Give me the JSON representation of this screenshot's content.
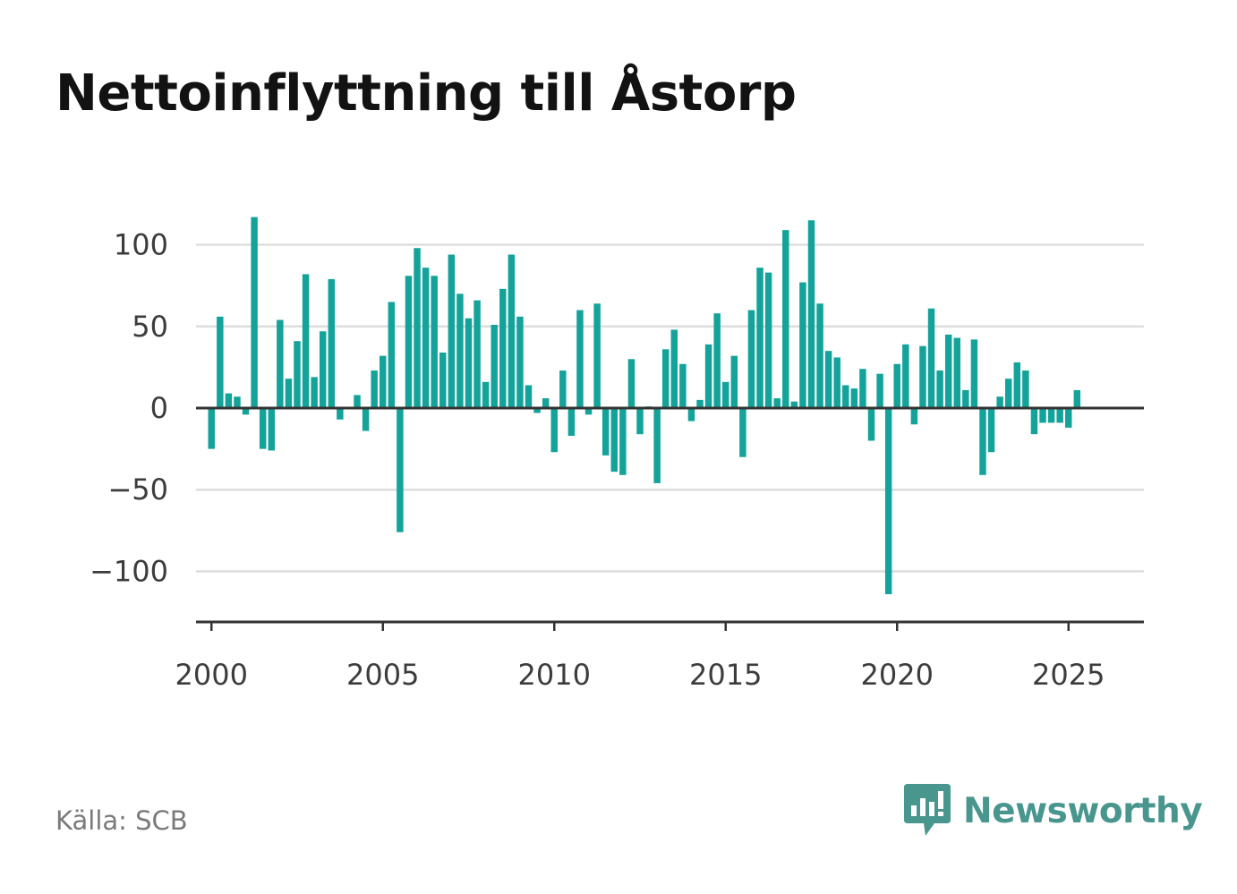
{
  "source_label": "Källa: SCB",
  "brand": {
    "name": "Newsworthy",
    "icon": "newsworthy-logo-icon",
    "color": "#48968d"
  },
  "colors": {
    "bar": "#14a39a",
    "grid": "#dddddd",
    "zero_line": "#333333",
    "axis": "#333333"
  },
  "chart_data": {
    "type": "bar",
    "title": "Nettoinflyttning till Åstorp",
    "xlabel": "",
    "ylabel": "",
    "x_axis": "date",
    "xlim": [
      1999.55,
      2027.2
    ],
    "ylim": [
      -131,
      131
    ],
    "x_ticks": [
      2000,
      2005,
      2010,
      2015,
      2020,
      2025
    ],
    "y_ticks": [
      100,
      50,
      0,
      -50,
      -100
    ],
    "y_tick_labels": [
      "100",
      "50",
      "0",
      "−50",
      "−100"
    ],
    "grid": true,
    "legend": "none",
    "series": [
      {
        "frequency": "quarterly",
        "start": "2000 Q1",
        "values": [
          -25,
          56,
          9,
          7,
          -4,
          117,
          -25,
          -26,
          54,
          18,
          41,
          82,
          19,
          47,
          79,
          -7,
          0,
          8,
          -14,
          23,
          32,
          65,
          -76,
          81,
          98,
          86,
          81,
          34,
          94,
          70,
          55,
          66,
          16,
          51,
          73,
          94,
          56,
          14,
          -3,
          6,
          -27,
          23,
          -17,
          60,
          -4,
          64,
          -29,
          -39,
          -41,
          30,
          -16,
          1,
          -46,
          36,
          48,
          27,
          -8,
          5,
          39,
          58,
          16,
          32,
          -30,
          60,
          86,
          83,
          6,
          109,
          4,
          77,
          115,
          64,
          35,
          31,
          14,
          12,
          24,
          -20,
          21,
          -114,
          27,
          39,
          -10,
          38,
          61,
          23,
          45,
          43,
          11,
          42,
          -41,
          -27,
          7,
          18,
          28,
          23,
          -16,
          -9,
          -9,
          -9,
          -12,
          11
        ]
      }
    ]
  }
}
